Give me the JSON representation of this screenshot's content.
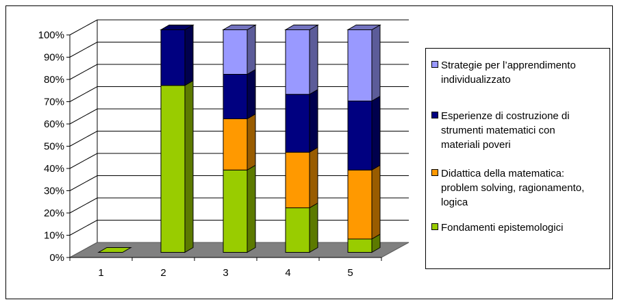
{
  "colors": {
    "grid": "#000000",
    "floor": "#808080",
    "floor_dark": "#5a5a5a",
    "wall": "#ffffff"
  },
  "chart_data": {
    "type": "bar",
    "stacked": true,
    "percent_stacked": true,
    "three_d": true,
    "categories": [
      "1",
      "2",
      "3",
      "4",
      "5"
    ],
    "y_ticks": [
      "0%",
      "10%",
      "20%",
      "30%",
      "40%",
      "50%",
      "60%",
      "70%",
      "80%",
      "90%",
      "100%"
    ],
    "ylim": [
      0,
      100
    ],
    "grid": true,
    "legend_position": "right",
    "series": [
      {
        "name": "Fondamenti epistemologici",
        "color": "#99cc00",
        "values": [
          0,
          75,
          37,
          20,
          6
        ]
      },
      {
        "name": "Didattica della matematica: problem solving, ragionamento, logica",
        "color": "#ff9900",
        "values": [
          0,
          0,
          23,
          25,
          31
        ]
      },
      {
        "name": "Esperienze di costruzione di strumenti matematici con materiali poveri",
        "color": "#000080",
        "values": [
          0,
          25,
          20,
          26,
          31
        ]
      },
      {
        "name": "Strategie per l’apprendimento individualizzato",
        "color": "#9999ff",
        "values": [
          0,
          0,
          20,
          29,
          32
        ]
      }
    ]
  },
  "legend": {
    "items": [
      {
        "lines": [
          "Strategie per l’apprendimento",
          "individualizzato"
        ],
        "color": "#9999ff"
      },
      {
        "lines": [
          "Esperienze di costruzione di",
          "strumenti matematici con",
          "materiali poveri"
        ],
        "color": "#000080"
      },
      {
        "lines": [
          "Didattica della matematica:",
          "problem solving, ragionamento,",
          "logica"
        ],
        "color": "#ff9900"
      },
      {
        "lines": [
          "Fondamenti epistemologici"
        ],
        "color": "#99cc00"
      }
    ]
  }
}
